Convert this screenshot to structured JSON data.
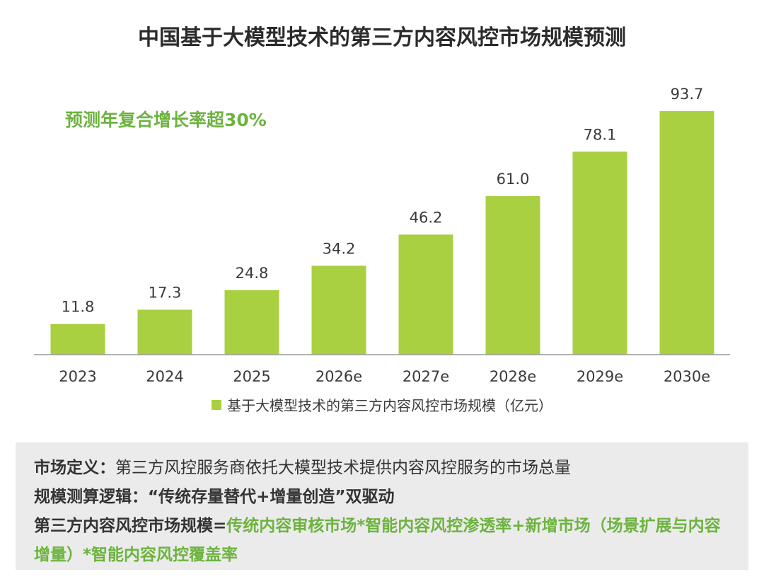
{
  "colors": {
    "bar": "#a8d040",
    "accent": "#6db33f",
    "axis": "#9a9a9a",
    "text": "#3a3a3a"
  },
  "chart_data": {
    "type": "bar",
    "title": "中国基于大模型技术的第三方内容风控市场规模预测",
    "annotation": "预测年复合增长率超30%",
    "categories": [
      "2023",
      "2024",
      "2025",
      "2026e",
      "2027e",
      "2028e",
      "2029e",
      "2030e"
    ],
    "series": [
      {
        "name": "基于大模型技术的第三方内容风控市场规模（亿元）",
        "values": [
          11.8,
          17.3,
          24.8,
          34.2,
          46.2,
          61.0,
          78.1,
          93.7
        ]
      }
    ],
    "ylim": [
      0,
      93.7
    ],
    "grid": false,
    "legend": "bottom"
  },
  "definition": {
    "market_label": "市场定义：",
    "market_text": "第三方风控服务商依托大模型技术提供内容风控服务的市场总量",
    "logic_label": "规模测算逻辑：",
    "logic_text": "“传统存量替代+增量创造”双驱动",
    "formula_label": "第三方内容风控市场规模=",
    "formula_text": "传统内容审核市场*智能内容风控渗透率+新增市场（场景扩展与内容增量）*智能内容风控覆盖率"
  }
}
